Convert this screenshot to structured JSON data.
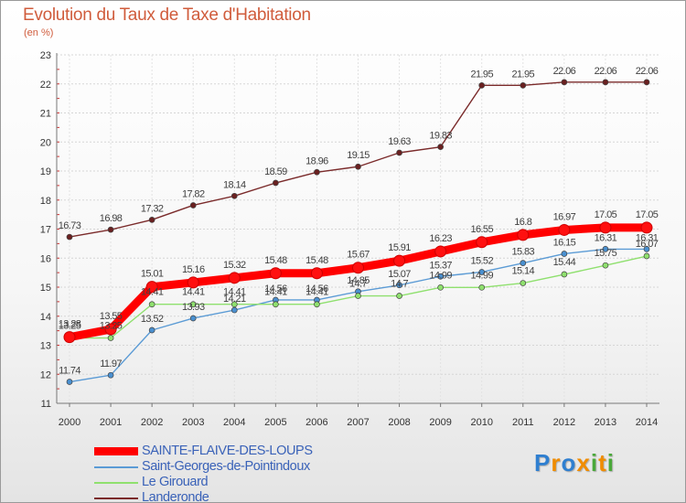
{
  "title": "Evolution du Taux de Taxe d'Habitation",
  "subtitle": "(en %)",
  "chart_data": {
    "type": "line",
    "title": "Evolution du Taux de Taxe d'Habitation",
    "subtitle": "(en %)",
    "x": [
      2000,
      2001,
      2002,
      2003,
      2004,
      2005,
      2006,
      2007,
      2008,
      2009,
      2010,
      2011,
      2012,
      2013,
      2014
    ],
    "ylim": [
      11,
      23
    ],
    "yticks": [
      11,
      12,
      13,
      14,
      15,
      16,
      17,
      18,
      19,
      20,
      21,
      22,
      23
    ],
    "grid": true,
    "legend_position": "bottom-left",
    "series": [
      {
        "name": "SAINTE-FLAIVE-DES-LOUPS",
        "color": "#ff0000",
        "values": [
          13.28,
          13.55,
          15.01,
          15.16,
          15.32,
          15.48,
          15.48,
          15.67,
          15.91,
          16.23,
          16.55,
          16.8,
          16.97,
          17.05,
          17.05
        ]
      },
      {
        "name": "Saint-Georges-de-Pointindoux",
        "color": "#5b9bd5",
        "values": [
          11.74,
          11.97,
          13.52,
          13.93,
          14.21,
          14.56,
          14.56,
          14.85,
          15.07,
          15.37,
          15.52,
          15.83,
          16.15,
          16.31,
          16.31
        ]
      },
      {
        "name": "Le Girouard",
        "color": "#8fe06e",
        "values": [
          13.25,
          13.25,
          14.41,
          14.41,
          14.41,
          14.41,
          14.41,
          14.7,
          14.7,
          14.99,
          14.99,
          15.14,
          15.44,
          15.75,
          16.07
        ]
      },
      {
        "name": "Landeronde",
        "color": "#7a2a2a",
        "values": [
          16.73,
          16.98,
          17.32,
          17.82,
          18.14,
          18.59,
          18.96,
          19.15,
          19.63,
          19.83,
          21.95,
          21.95,
          22.06,
          22.06,
          22.06
        ]
      }
    ]
  },
  "logo": {
    "letters": [
      "P",
      "r",
      "o",
      "x",
      "i",
      "t",
      "i"
    ],
    "colors": [
      "#2f7fd0",
      "#f08c00",
      "#2f7fd0",
      "#f08c00",
      "#4aa83a",
      "#f08c00",
      "#4aa83a"
    ]
  }
}
